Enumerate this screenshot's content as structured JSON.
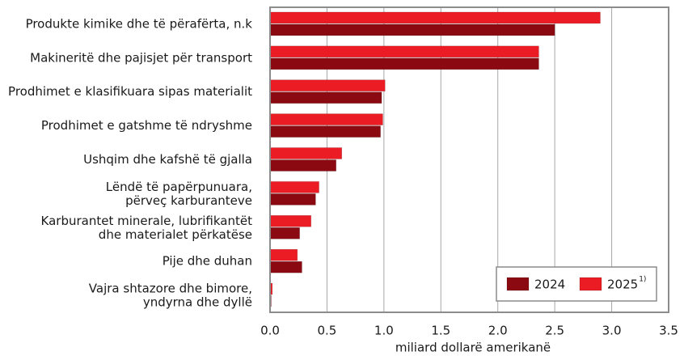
{
  "chart_data": {
    "type": "hbar",
    "categories": [
      "Produkte kimike dhe të përafërta, n.k",
      "Makineritë dhe pajisjet për transport",
      "Prodhimet e klasifikuara sipas materialit",
      "Prodhimet e gatshme të ndryshme",
      "Ushqim dhe kafshë të gjalla",
      "Lëndë të papërpunuara,\npërveç karburanteve",
      "Karburantet minerale, lubrifikantët\ndhe materialet përkatëse",
      "Pije dhe duhan",
      "Vajra shtazore dhe bimore,\nyndyrna dhe dyllë"
    ],
    "series": [
      {
        "name": "2025",
        "name_superscript": "1)",
        "color": "#ec1c24",
        "values": [
          2.9,
          2.36,
          1.01,
          0.99,
          0.63,
          0.43,
          0.36,
          0.24,
          0.02
        ]
      },
      {
        "name": "2024",
        "color": "#8b0a12",
        "values": [
          2.5,
          2.36,
          0.98,
          0.97,
          0.58,
          0.4,
          0.26,
          0.28,
          0.01
        ]
      }
    ],
    "xlabel": "miliard dollarë amerikanë",
    "xlim": [
      0,
      3.5
    ],
    "xticks": [
      {
        "value": 0,
        "label": "0.0"
      },
      0.5,
      {
        "value": 1,
        "label": "1.0"
      },
      1.5,
      {
        "value": 2,
        "label": "2.0"
      },
      2.5,
      {
        "value": 3,
        "label": "3.0"
      },
      3.5
    ],
    "grid": true,
    "legend": "lower right"
  }
}
